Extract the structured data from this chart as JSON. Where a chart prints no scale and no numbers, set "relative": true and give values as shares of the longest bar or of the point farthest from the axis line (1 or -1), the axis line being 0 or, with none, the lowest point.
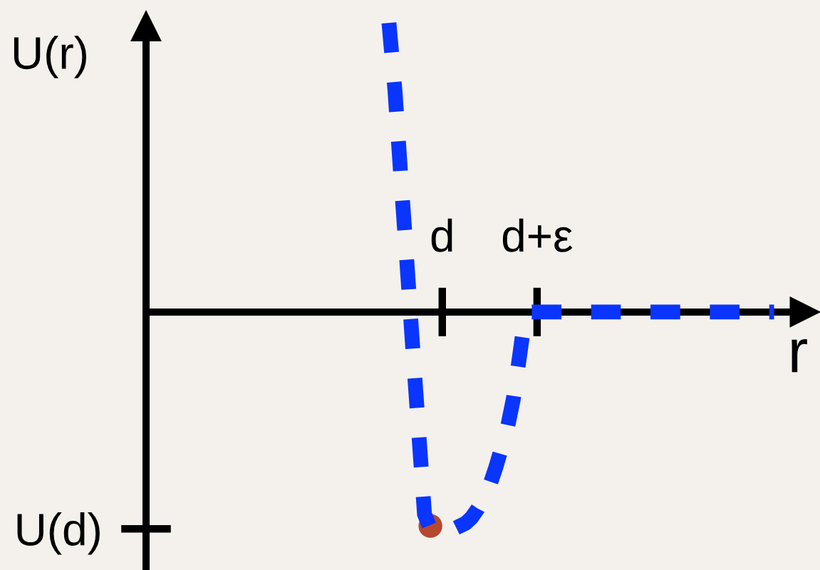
{
  "chart_data": {
    "type": "line",
    "relative": true,
    "xlabel": "r",
    "ylabel": "U(r)",
    "line_style": "dashed",
    "marker": "none",
    "categories": [
      null,
      null,
      null,
      null,
      null,
      null,
      null,
      null,
      null,
      null,
      null,
      null,
      null,
      null,
      null,
      null,
      null,
      null,
      null,
      null,
      null,
      null,
      null,
      null,
      null,
      null,
      null,
      null,
      null,
      null,
      null,
      null,
      null,
      null,
      null,
      null,
      null,
      null,
      null,
      null,
      null,
      null,
      null,
      null,
      null,
      null,
      null,
      null,
      null,
      null,
      "d",
      null,
      null,
      null,
      null,
      null,
      null,
      null,
      null,
      null,
      null,
      null,
      null,
      null,
      null,
      null,
      "d+ε",
      null,
      null,
      null,
      null,
      null,
      null,
      null,
      null,
      null,
      null,
      null,
      null,
      null,
      null,
      null,
      null,
      null,
      null,
      null,
      null,
      null,
      null,
      null,
      null,
      null,
      null,
      null,
      null,
      null,
      null,
      null,
      null,
      null,
      null,
      null,
      null,
      null,
      null,
      null,
      null
    ],
    "annotations": [
      "U(d)"
    ],
    "series": [
      {
        "color": "#0a35ff",
        "values": [
          null,
          null,
          null,
          null,
          null,
          null,
          null,
          null,
          null,
          null,
          null,
          null,
          null,
          null,
          null,
          null,
          null,
          null,
          null,
          null,
          null,
          null,
          null,
          null,
          null,
          null,
          null,
          null,
          null,
          null,
          null,
          null,
          null,
          null,
          null,
          null,
          null,
          null,
          null,
          null,
          null,
          1.0,
          0.77,
          0.47,
          0.18,
          -0.12,
          -0.41,
          -0.7,
          -0.75,
          -0.75,
          -0.75,
          -0.75,
          -0.75,
          -0.74,
          -0.73,
          -0.71,
          -0.68,
          -0.64,
          -0.6,
          -0.54,
          -0.47,
          -0.4,
          -0.3,
          -0.16,
          -0.01,
          0,
          0,
          0,
          0,
          0,
          0,
          0,
          0,
          0,
          0,
          0,
          0,
          0,
          0,
          0,
          0,
          0,
          0,
          0,
          0,
          0,
          0,
          0,
          0,
          0,
          0,
          0,
          0,
          0,
          0,
          0,
          0,
          0,
          0,
          0,
          0,
          0,
          0,
          0,
          0,
          0,
          0
        ]
      },
      {
        "type": "scatter",
        "color": "#b5482e",
        "marker": "circle",
        "values": [
          null,
          null,
          null,
          null,
          null,
          null,
          null,
          null,
          null,
          null,
          null,
          null,
          null,
          null,
          null,
          null,
          null,
          null,
          null,
          null,
          null,
          null,
          null,
          null,
          null,
          null,
          null,
          null,
          null,
          null,
          null,
          null,
          null,
          null,
          null,
          null,
          null,
          null,
          null,
          null,
          null,
          null,
          null,
          null,
          null,
          null,
          null,
          null,
          -0.74,
          null,
          null,
          null,
          null,
          null,
          null,
          null,
          null,
          null,
          null,
          null,
          null,
          null,
          null,
          null,
          null,
          null,
          null,
          null,
          null,
          null,
          null,
          null,
          null,
          null,
          null,
          null,
          null,
          null,
          null,
          null,
          null,
          null,
          null,
          null,
          null,
          null,
          null,
          null,
          null,
          null,
          null,
          null,
          null,
          null,
          null,
          null,
          null,
          null,
          null,
          null,
          null,
          null,
          null,
          null,
          null,
          null,
          null
        ]
      }
    ]
  }
}
